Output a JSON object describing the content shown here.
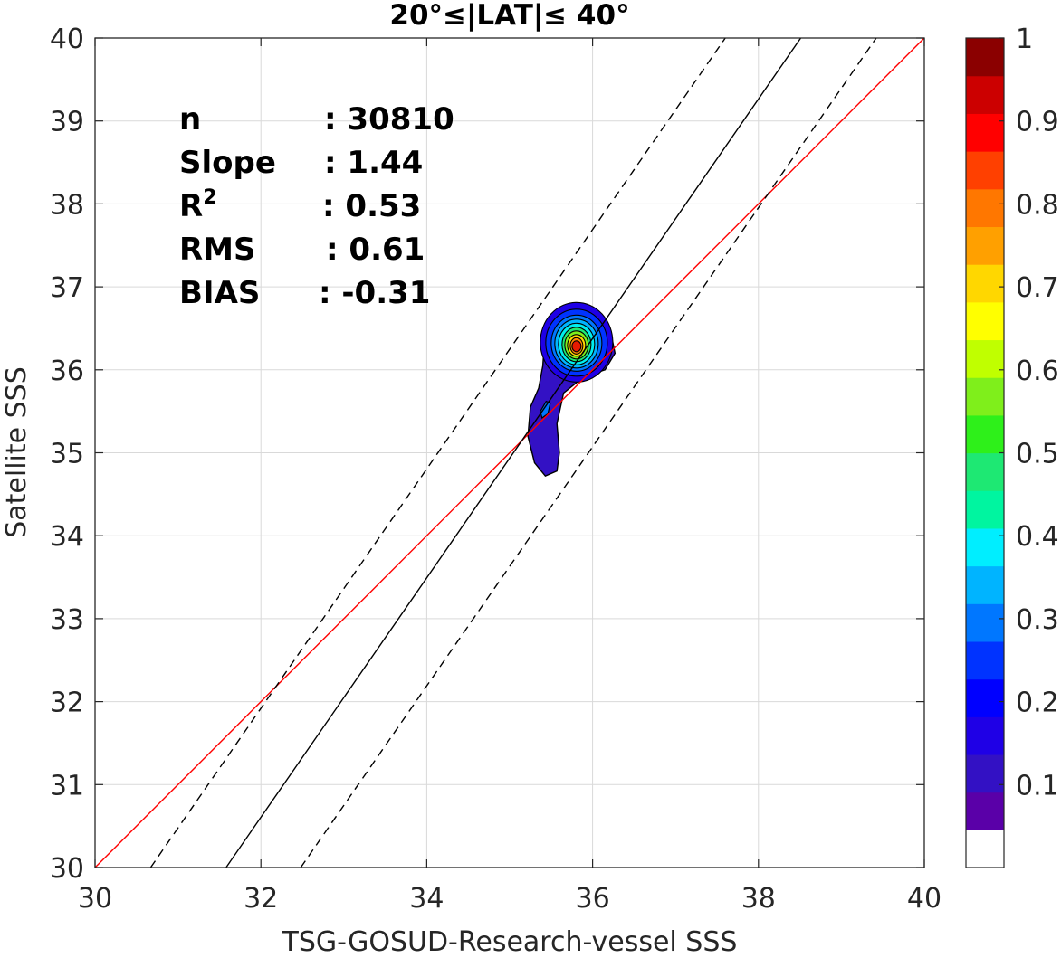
{
  "chart_data": {
    "type": "scatter",
    "title": "20°≤|LAT|≤ 40°",
    "xlabel": "TSG-GOSUD-Research-vessel SSS",
    "ylabel": "Satellite SSS",
    "xlim": [
      30,
      40
    ],
    "ylim": [
      30,
      40
    ],
    "x_ticks": [
      30,
      32,
      34,
      36,
      38,
      40
    ],
    "y_ticks": [
      30,
      31,
      32,
      33,
      34,
      35,
      36,
      37,
      38,
      39,
      40
    ],
    "grid": true,
    "stats": [
      {
        "label": "n",
        "value": ": 30810"
      },
      {
        "label": "Slope",
        "value": ": 1.44"
      },
      {
        "label": "R",
        "sup": "2",
        "value": ": 0.53"
      },
      {
        "label": "RMS",
        "value": ": 0.61"
      },
      {
        "label": "BIAS",
        "value": ": -0.31"
      }
    ],
    "lines": [
      {
        "name": "one-to-one",
        "color": "#ff0000",
        "style": "solid",
        "x": [
          30,
          40
        ],
        "y": [
          30,
          40
        ]
      },
      {
        "name": "regression",
        "color": "#000000",
        "style": "solid",
        "x": [
          31.58,
          38.51
        ],
        "y": [
          30,
          40
        ]
      },
      {
        "name": "regression-upper",
        "color": "#000000",
        "style": "dashed",
        "x": [
          30.67,
          37.6
        ],
        "y": [
          30,
          40
        ]
      },
      {
        "name": "regression-lower",
        "color": "#000000",
        "style": "dashed",
        "x": [
          32.48,
          39.42
        ],
        "y": [
          30,
          40
        ]
      }
    ],
    "density_contours": {
      "peak": [
        35.85,
        36.3
      ],
      "levels": [
        0.05,
        0.1,
        0.2,
        0.3,
        0.35,
        0.4,
        0.5,
        0.6,
        0.7,
        0.8,
        0.9
      ],
      "colors": [
        "#3311c4",
        "#1f00e6",
        "#0033ff",
        "#0077ff",
        "#00b4ff",
        "#00eeee",
        "#1ee873",
        "#7fef1b",
        "#ffd700",
        "#ff8800",
        "#e61a00"
      ],
      "outer_region": [
        [
          35.3,
          34.88
        ],
        [
          35.43,
          34.72
        ],
        [
          35.57,
          34.78
        ],
        [
          35.6,
          35.0
        ],
        [
          35.57,
          35.35
        ],
        [
          35.65,
          35.72
        ],
        [
          35.9,
          35.92
        ],
        [
          36.15,
          36.0
        ],
        [
          36.27,
          36.2
        ],
        [
          36.22,
          36.45
        ],
        [
          36.0,
          36.73
        ],
        [
          35.77,
          36.8
        ],
        [
          35.52,
          36.68
        ],
        [
          35.42,
          36.35
        ],
        [
          35.4,
          36.05
        ],
        [
          35.35,
          35.78
        ],
        [
          35.25,
          35.55
        ],
        [
          35.22,
          35.2
        ]
      ]
    },
    "colorbar": {
      "ticks": [
        "1",
        "0.9",
        "0.8",
        "0.7",
        "0.6",
        "0.5",
        "0.4",
        "0.3",
        "0.2",
        "0.1"
      ],
      "tick_values": [
        1,
        0.9,
        0.8,
        0.7,
        0.6,
        0.5,
        0.4,
        0.3,
        0.2,
        0.1
      ],
      "range": [
        0,
        1
      ],
      "colors": [
        "#ffffff",
        "#5a00a8",
        "#3311c4",
        "#1f00e6",
        "#0000ff",
        "#0033ff",
        "#0077ff",
        "#00b4ff",
        "#00eeff",
        "#00f5a0",
        "#1ee873",
        "#2ef01a",
        "#7fef1b",
        "#c0ff00",
        "#ffff00",
        "#ffd700",
        "#ffa000",
        "#ff7700",
        "#ff4000",
        "#ff0000",
        "#cc0000",
        "#8b0000"
      ]
    }
  }
}
